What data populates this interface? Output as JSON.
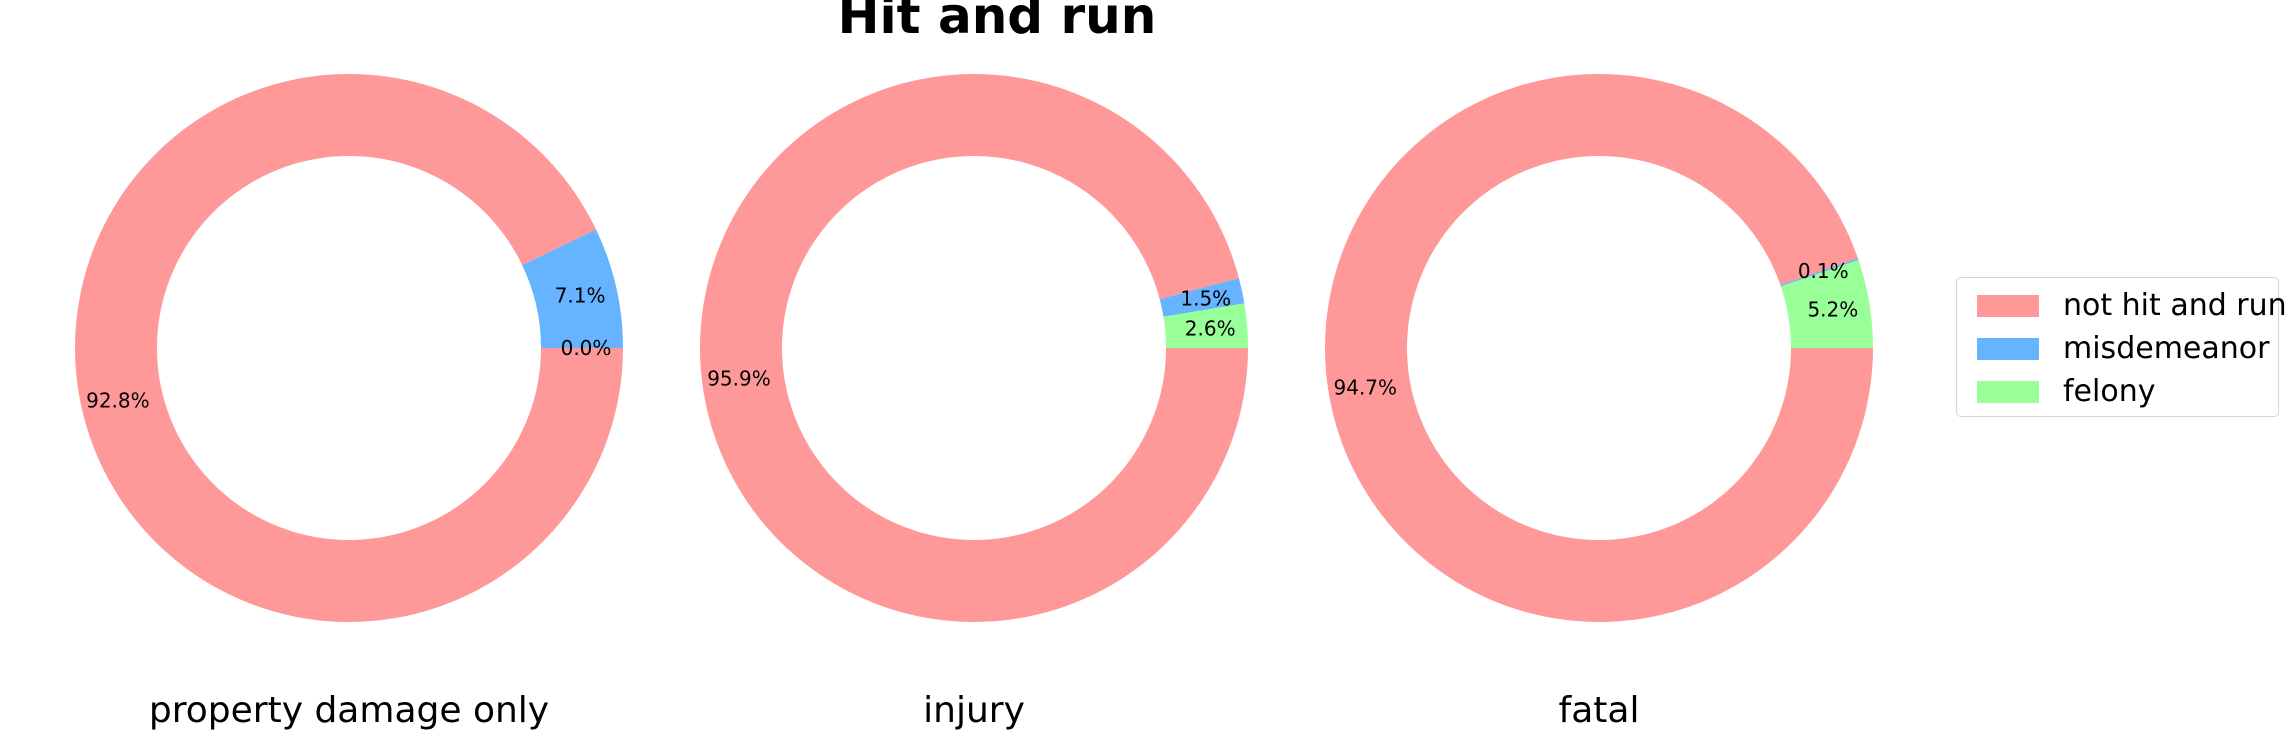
{
  "title": "Hit and run",
  "colors": {
    "not_hit_and_run": "#ff9999",
    "misdemeanor": "#66b3ff",
    "felony": "#99ff99"
  },
  "legend": {
    "placement": "center-right",
    "items": [
      {
        "label": "not hit and run",
        "color": "#ff9999"
      },
      {
        "label": "misdemeanor",
        "color": "#66b3ff"
      },
      {
        "label": "felony",
        "color": "#99ff99"
      }
    ]
  },
  "chart_data": [
    {
      "type": "pie",
      "style": "donut",
      "label": "property damage only",
      "categories": [
        "not hit and run",
        "misdemeanor",
        "felony"
      ],
      "values": [
        92.8,
        7.1,
        0.0
      ],
      "value_labels": [
        "92.8%",
        "7.1%",
        "0.0%"
      ]
    },
    {
      "type": "pie",
      "style": "donut",
      "label": "injury",
      "categories": [
        "not hit and run",
        "misdemeanor",
        "felony"
      ],
      "values": [
        95.9,
        1.5,
        2.6
      ],
      "value_labels": [
        "95.9%",
        "1.5%",
        "2.6%"
      ]
    },
    {
      "type": "pie",
      "style": "donut",
      "label": "fatal",
      "categories": [
        "not hit and run",
        "misdemeanor",
        "felony"
      ],
      "values": [
        94.7,
        0.1,
        5.2
      ],
      "value_labels": [
        "94.7%",
        "0.1%",
        "5.2%"
      ]
    }
  ]
}
